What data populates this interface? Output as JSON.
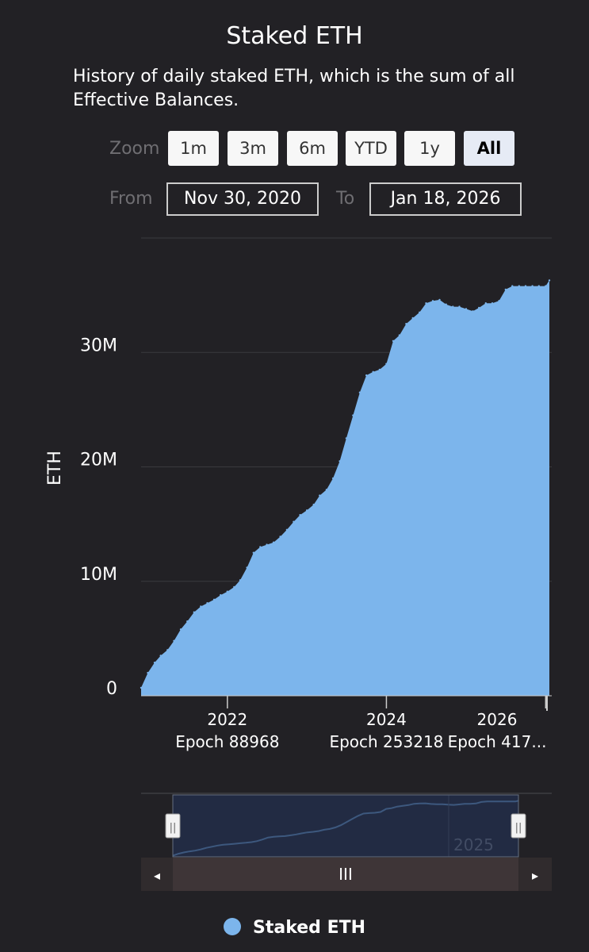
{
  "header": {
    "title": "Staked ETH",
    "subtitle": "History of daily staked ETH, which is the sum of all Effective Balances."
  },
  "controls": {
    "zoom_label": "Zoom",
    "zoom_buttons": [
      "1m",
      "3m",
      "6m",
      "YTD",
      "1y",
      "All"
    ],
    "active_zoom": "All",
    "from_label": "From",
    "from_value": "Nov 30, 2020",
    "to_label": "To",
    "to_value": "Jan 18, 2026"
  },
  "navigator": {
    "year_label": "2025",
    "scroll_grip": "III",
    "left_arrow": "◂",
    "right_arrow": "▸",
    "handle_grip": "||"
  },
  "colors": {
    "background": "#222125",
    "series": "#7cb5ec",
    "grid": "#3a3a3e",
    "navigator_mask": "#223150",
    "scrollbar": "#3e3537"
  },
  "chart_data": {
    "type": "area",
    "title": "Staked ETH",
    "subtitle": "History of daily staked ETH, which is the sum of all Effective Balances.",
    "ylabel": "ETH",
    "ylim": [
      0,
      40000000
    ],
    "yticks": [
      {
        "value": 0,
        "label": "0"
      },
      {
        "value": 10000000,
        "label": "10M"
      },
      {
        "value": 20000000,
        "label": "20M"
      },
      {
        "value": 30000000,
        "label": "30M"
      }
    ],
    "xlim": [
      "2020-12-01",
      "2026-01-18"
    ],
    "xticks": [
      {
        "date": "2022-01-01",
        "year": "2022",
        "epoch": "Epoch 88968"
      },
      {
        "date": "2024-01-01",
        "year": "2024",
        "epoch": "Epoch 253218"
      },
      {
        "date": "2026-01-01",
        "year": "2026",
        "epoch": "Epoch 417..."
      }
    ],
    "grid": true,
    "legend": "bottom",
    "series": [
      {
        "name": "Staked ETH",
        "x": [
          "2020-12-01",
          "2021-01-01",
          "2021-02-01",
          "2021-03-01",
          "2021-04-01",
          "2021-05-01",
          "2021-06-01",
          "2021-07-01",
          "2021-08-01",
          "2021-09-01",
          "2021-10-01",
          "2021-11-01",
          "2021-12-01",
          "2022-01-01",
          "2022-02-01",
          "2022-03-01",
          "2022-04-01",
          "2022-05-01",
          "2022-06-01",
          "2022-07-01",
          "2022-08-01",
          "2022-09-01",
          "2022-10-01",
          "2022-11-01",
          "2022-12-01",
          "2023-01-01",
          "2023-02-01",
          "2023-03-01",
          "2023-04-01",
          "2023-05-01",
          "2023-06-01",
          "2023-07-01",
          "2023-08-01",
          "2023-09-01",
          "2023-10-01",
          "2023-11-01",
          "2023-12-01",
          "2024-01-01",
          "2024-02-01",
          "2024-03-01",
          "2024-04-01",
          "2024-05-01",
          "2024-06-01",
          "2024-07-01",
          "2024-08-01",
          "2024-09-01",
          "2024-10-01",
          "2024-11-01",
          "2024-12-01",
          "2025-01-01",
          "2025-02-01",
          "2025-03-01",
          "2025-04-01",
          "2025-05-01",
          "2025-06-01",
          "2025-07-01",
          "2025-08-01",
          "2025-09-01",
          "2025-10-01",
          "2025-11-01",
          "2025-12-01",
          "2026-01-01",
          "2026-01-18"
        ],
        "values": [
          700000,
          2000000,
          2900000,
          3500000,
          4000000,
          4800000,
          5800000,
          6500000,
          7300000,
          7800000,
          8100000,
          8400000,
          8800000,
          9100000,
          9500000,
          10100000,
          11200000,
          12500000,
          13000000,
          13200000,
          13400000,
          13900000,
          14500000,
          15200000,
          15800000,
          16200000,
          16700000,
          17500000,
          18000000,
          19000000,
          20500000,
          22500000,
          24500000,
          26500000,
          28000000,
          28300000,
          28500000,
          29000000,
          31000000,
          31500000,
          32500000,
          33000000,
          33500000,
          34300000,
          34500000,
          34600000,
          34200000,
          34000000,
          34000000,
          33800000,
          33600000,
          33900000,
          34300000,
          34300000,
          34500000,
          35500000,
          35800000,
          35800000,
          35800000,
          35800000,
          35800000,
          35800000,
          36300000
        ]
      }
    ]
  }
}
